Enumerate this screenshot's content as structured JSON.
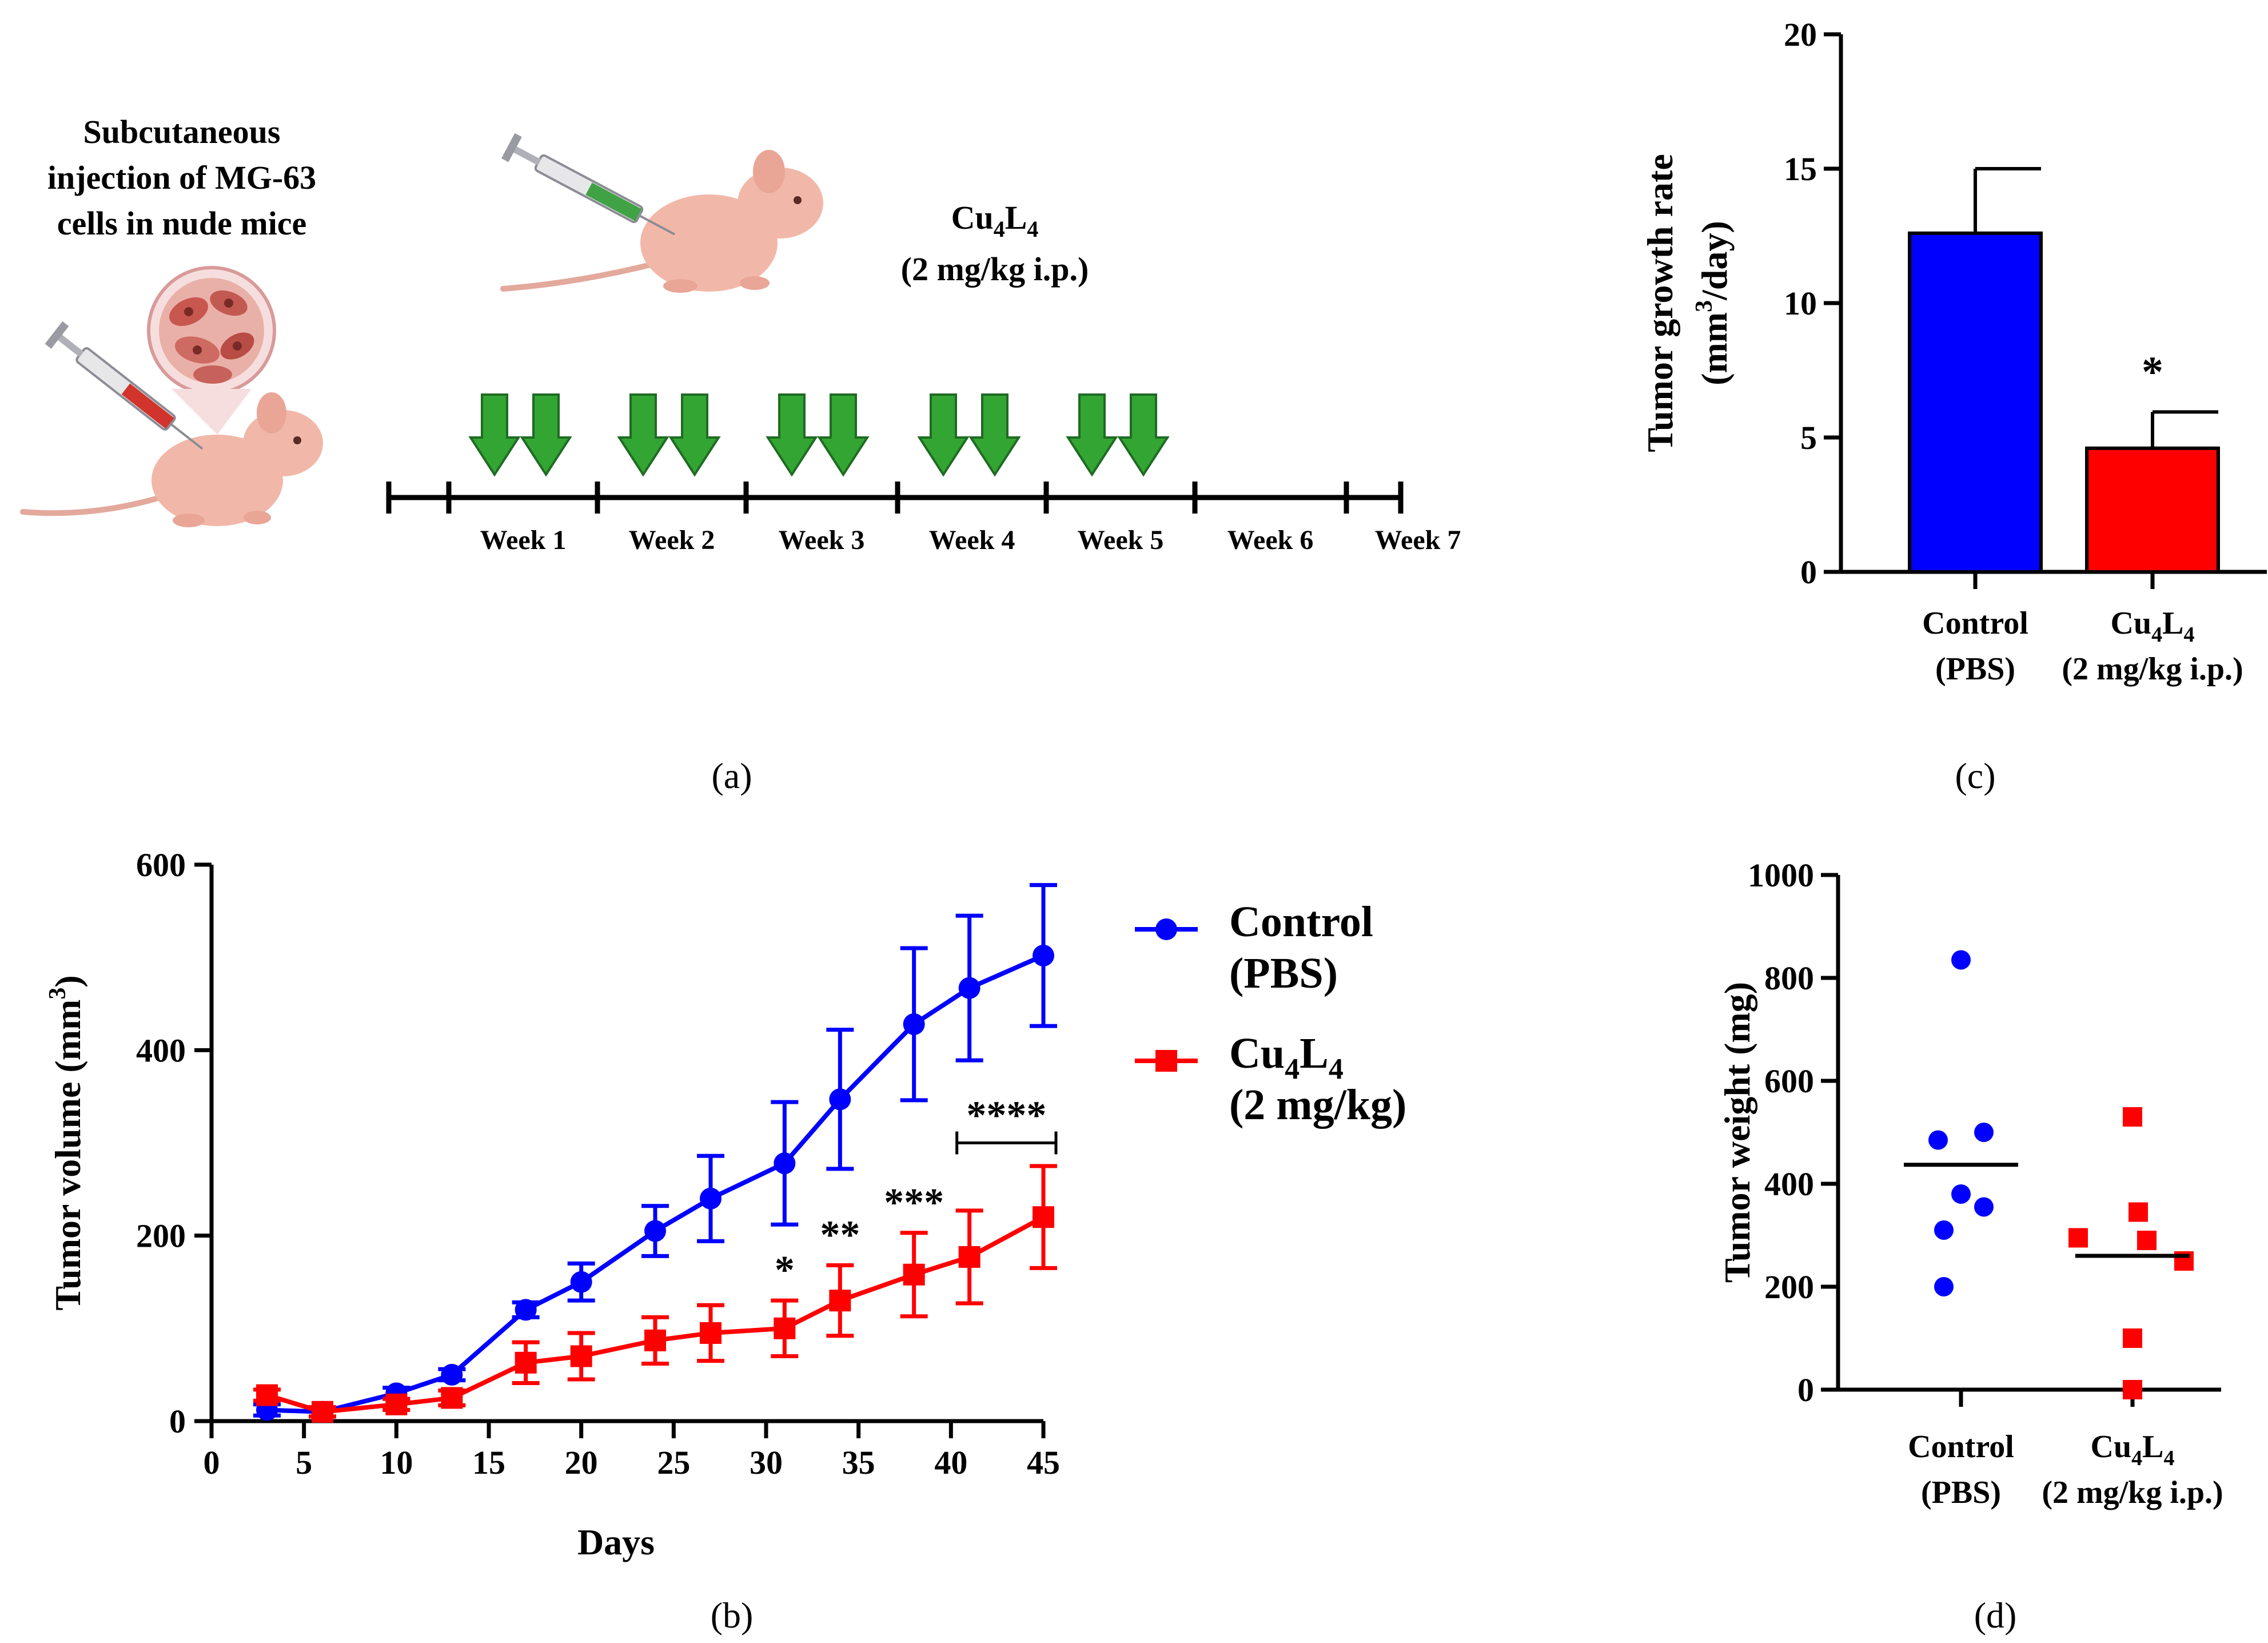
{
  "panel_labels": {
    "a": "(a)",
    "b": "(b)",
    "c": "(c)",
    "d": "(d)"
  },
  "panel_a": {
    "injection_caption": [
      "Subcutaneous",
      "injection of MG-63",
      "cells in nude mice"
    ],
    "treatment_label": {
      "prefix": "Cu",
      "sub1": "4",
      "mid": "L",
      "sub2": "4"
    },
    "dose_label": "(2 mg/kg i.p.)",
    "weeks": [
      "Week 1",
      "Week 2",
      "Week 3",
      "Week 4",
      "Week 5",
      "Week 6",
      "Week 7"
    ],
    "dose_arrows_per_week": [
      2,
      2,
      2,
      2,
      2,
      0,
      0
    ],
    "icons": [
      "mouse-icon",
      "syringe-icon",
      "tumor-cells-icon",
      "arrow-down-icon"
    ]
  },
  "colors": {
    "control": "#0000ff",
    "treated": "#ff0000",
    "arrow": "#33a532",
    "axis": "#000000"
  },
  "chart_data": [
    {
      "id": "b",
      "type": "line",
      "title": "",
      "xlabel": "Days",
      "ylabel": "Tumor volume (mm3)",
      "ylabel_parts": {
        "main": "Tumor volume (mm",
        "sup": "3",
        "tail": ")"
      },
      "xlim": [
        0,
        45
      ],
      "ylim": [
        0,
        600
      ],
      "xticks": [
        0,
        5,
        10,
        15,
        20,
        25,
        30,
        35,
        40,
        45
      ],
      "yticks": [
        0,
        200,
        400,
        600
      ],
      "x": [
        3,
        6,
        10,
        13,
        17,
        20,
        24,
        27,
        31,
        34,
        38,
        41,
        45
      ],
      "series": [
        {
          "name": "Control (PBS)",
          "legend_lines": [
            "Control",
            "(PBS)"
          ],
          "marker": "circle",
          "color": "#0000ff",
          "values": [
            12,
            10,
            30,
            50,
            120,
            150,
            205,
            240,
            278,
            347,
            428,
            467,
            502
          ],
          "errors": [
            6,
            5,
            6,
            6,
            8,
            20,
            27,
            46,
            66,
            75,
            82,
            78,
            76
          ]
        },
        {
          "name": "Cu4L4 (2 mg/kg)",
          "legend_lines": [
            "Cu4L4",
            "(2 mg/kg)"
          ],
          "marker": "square",
          "color": "#ff0000",
          "values": [
            28,
            10,
            18,
            25,
            63,
            70,
            87,
            95,
            100,
            130,
            158,
            177,
            220
          ],
          "errors": [
            6,
            5,
            6,
            8,
            22,
            25,
            25,
            30,
            30,
            38,
            45,
            50,
            55
          ]
        }
      ],
      "significance": [
        {
          "x": 31,
          "label": "*"
        },
        {
          "x": 34,
          "label": "**"
        },
        {
          "x": 38,
          "label": "***"
        },
        {
          "x_range": [
            41,
            45
          ],
          "label": "****"
        }
      ],
      "legend": "right"
    },
    {
      "id": "c",
      "type": "bar",
      "title": "",
      "ylabel": "Tumor growth rate (mm3/day)",
      "ylabel_lines": [
        "Tumor growth rate",
        "(mm",
        "3",
        "/day)"
      ],
      "ylim": [
        0,
        20
      ],
      "yticks": [
        0,
        5,
        10,
        15,
        20
      ],
      "categories": [
        [
          "Control",
          "(PBS)"
        ],
        [
          "Cu4L4",
          "(2 mg/kg i.p.)"
        ]
      ],
      "values": [
        12.6,
        4.6
      ],
      "errors": [
        2.4,
        1.35
      ],
      "colors": [
        "#0000ff",
        "#ff0000"
      ],
      "significance": [
        {
          "category": 1,
          "label": "*"
        }
      ]
    },
    {
      "id": "d",
      "type": "scatter",
      "title": "",
      "ylabel": "Tumor weight (mg)",
      "ylim": [
        0,
        1000
      ],
      "yticks": [
        0,
        200,
        400,
        600,
        800,
        1000
      ],
      "categories": [
        [
          "Control",
          "(PBS)"
        ],
        [
          "Cu4L4",
          "(2 mg/kg i.p.)"
        ]
      ],
      "groups": [
        {
          "name": "Control (PBS)",
          "marker": "circle",
          "color": "#0000ff",
          "points": [
            835,
            500,
            485,
            380,
            355,
            310,
            200
          ],
          "mean": 437
        },
        {
          "name": "Cu4L4 (2 mg/kg i.p.)",
          "marker": "square",
          "color": "#ff0000",
          "points": [
            530,
            345,
            295,
            290,
            250,
            100,
            0
          ],
          "mean": 260
        }
      ]
    }
  ]
}
